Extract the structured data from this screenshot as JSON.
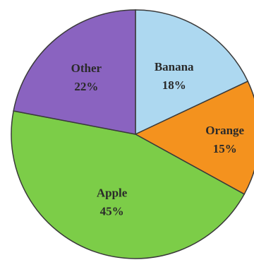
{
  "chart_data": {
    "type": "pie",
    "title": "",
    "slices": [
      {
        "label": "Banana",
        "value": 18,
        "value_label": "18%",
        "color": "#add8f0"
      },
      {
        "label": "Orange",
        "value": 15,
        "value_label": "15%",
        "color": "#f4921e"
      },
      {
        "label": "Apple",
        "value": 45,
        "value_label": "45%",
        "color": "#7ccd48"
      },
      {
        "label": "Other",
        "value": 22,
        "value_label": "22%",
        "color": "#8a63c0"
      }
    ],
    "start": "12 o'clock",
    "direction": "clockwise",
    "legend": "none"
  }
}
